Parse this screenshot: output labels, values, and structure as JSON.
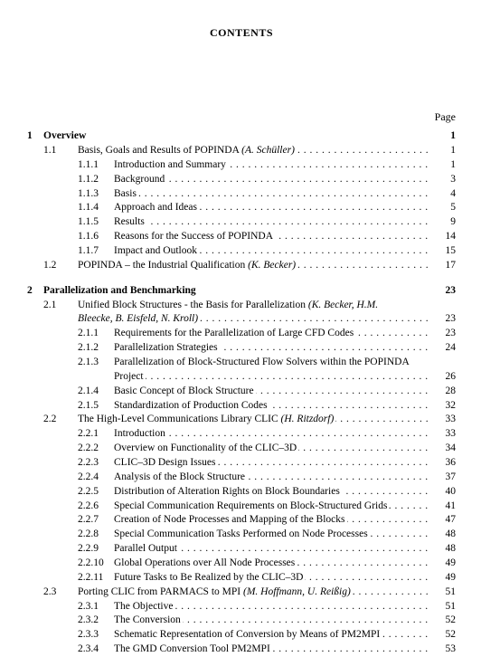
{
  "heading": "CONTENTS",
  "page_label": "Page",
  "chapters": [
    {
      "num": "1",
      "title": "Overview",
      "page": "1",
      "sections": [
        {
          "num": "1.1",
          "title_html": "Basis, Goals and Results of POPINDA <span class=\"ital\">(A. Schüller)</span>",
          "page": "1",
          "subs": [
            {
              "num": "1.1.1",
              "title": "Introduction and Summary",
              "page": "1"
            },
            {
              "num": "1.1.2",
              "title": "Background",
              "page": "3"
            },
            {
              "num": "1.1.3",
              "title": "Basis",
              "page": "4"
            },
            {
              "num": "1.1.4",
              "title": "Approach and Ideas",
              "page": "5"
            },
            {
              "num": "1.1.5",
              "title": "Results",
              "page": "9"
            },
            {
              "num": "1.1.6",
              "title": "Reasons for the Success of POPINDA",
              "page": "14"
            },
            {
              "num": "1.1.7",
              "title": "Impact and Outlook",
              "page": "15"
            }
          ]
        },
        {
          "num": "1.2",
          "title_html": "POPINDA – the Industrial Qualification <span class=\"ital\">(K. Becker)</span>",
          "page": "17",
          "subs": []
        }
      ]
    },
    {
      "num": "2",
      "title": "Parallelization and Benchmarking",
      "page": "23",
      "sections": [
        {
          "num": "2.1",
          "title_html": "Unified Block Structures - the Basis for Parallelization <span class=\"ital\">(K. Becker, H.M.</span>",
          "cont_html": "<span class=\"ital\">Bleecke, B. Eisfeld, N. Kroll)</span>",
          "page": "23",
          "subs": [
            {
              "num": "2.1.1",
              "title": "Requirements for the Parallelization of Large CFD Codes",
              "page": "23"
            },
            {
              "num": "2.1.2",
              "title": "Parallelization Strategies",
              "page": "24"
            },
            {
              "num": "2.1.3",
              "title": "Parallelization of Block-Structured Flow Solvers within the POPINDA",
              "cont_title": "Project",
              "page": "26"
            },
            {
              "num": "2.1.4",
              "title": "Basic Concept of Block Structure",
              "page": "28"
            },
            {
              "num": "2.1.5",
              "title": "Standardization of Production Codes",
              "page": "32"
            }
          ]
        },
        {
          "num": "2.2",
          "title_html": "The High-Level Communications Library CLIC <span class=\"ital\">(H. Ritzdorf)</span>",
          "page": "33",
          "subs": [
            {
              "num": "2.2.1",
              "title": "Introduction",
              "page": "33"
            },
            {
              "num": "2.2.2",
              "title": "Overview on Functionality of the CLIC–3D",
              "page": "34"
            },
            {
              "num": "2.2.3",
              "title": "CLIC–3D Design Issues",
              "page": "36"
            },
            {
              "num": "2.2.4",
              "title": "Analysis of the Block Structure",
              "page": "37"
            },
            {
              "num": "2.2.5",
              "title": "Distribution of Alteration Rights on Block Boundaries",
              "page": "40"
            },
            {
              "num": "2.2.6",
              "title": "Special Communication Requirements on Block-Structured Grids",
              "page": "41"
            },
            {
              "num": "2.2.7",
              "title": "Creation of Node Processes and Mapping of the Blocks",
              "page": "47"
            },
            {
              "num": "2.2.8",
              "title": "Special Communication Tasks Performed on Node Processes",
              "page": "48"
            },
            {
              "num": "2.2.9",
              "title": "Parallel Output",
              "page": "48"
            },
            {
              "num": "2.2.10",
              "title": "Global Operations over All Node Processes",
              "page": "49"
            },
            {
              "num": "2.2.11",
              "title": "Future Tasks to Be Realized by the CLIC–3D",
              "page": "49"
            }
          ]
        },
        {
          "num": "2.3",
          "title_html": "Porting CLIC from PARMACS to MPI <span class=\"ital\">(M. Hoffmann, U. Reißig)</span>",
          "page": "51",
          "subs": [
            {
              "num": "2.3.1",
              "title": "The Objective",
              "page": "51"
            },
            {
              "num": "2.3.2",
              "title": "The Conversion",
              "page": "52"
            },
            {
              "num": "2.3.3",
              "title": "Schematic Representation of Conversion by Means of PM2MPI",
              "page": "52"
            },
            {
              "num": "2.3.4",
              "title": "The GMD Conversion Tool PM2MPI",
              "page": "53"
            }
          ]
        }
      ]
    }
  ]
}
